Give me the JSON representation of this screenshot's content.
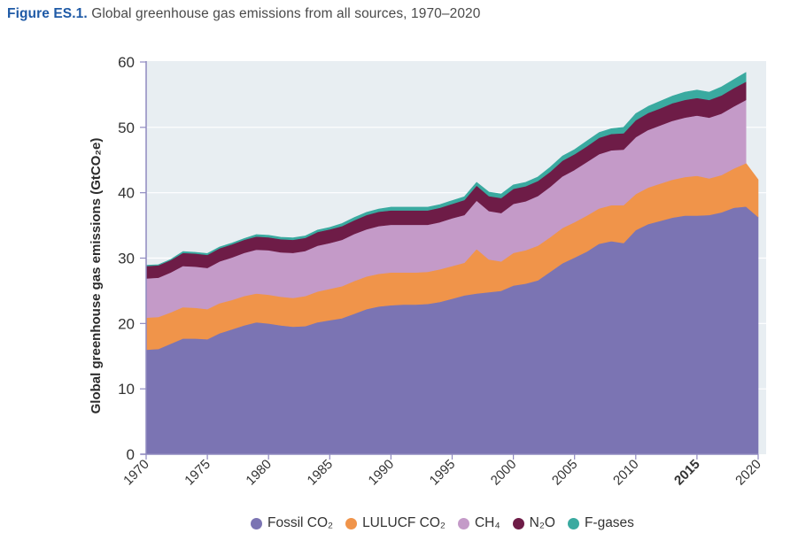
{
  "figure": {
    "label": "Figure ES.1.",
    "caption": " Global greenhouse gas emissions from all sources, 1970–2020"
  },
  "chart_data": {
    "type": "area",
    "stacked": true,
    "title": "Global greenhouse gas emissions from all sources, 1970–2020",
    "xlabel": "",
    "ylabel": "Global greenhouse gas emissions (GtCO₂e)",
    "ylim": [
      0,
      60
    ],
    "xlim": [
      1970,
      2020
    ],
    "yticks": [
      0,
      10,
      20,
      30,
      40,
      50,
      60
    ],
    "xticks": [
      {
        "label": "1970",
        "value": 1970,
        "style": "normal"
      },
      {
        "label": "1975",
        "value": 1975,
        "style": "normal"
      },
      {
        "label": "1980",
        "value": 1980,
        "style": "normal"
      },
      {
        "label": "1985",
        "value": 1985,
        "style": "normal"
      },
      {
        "label": "1990",
        "value": 1990,
        "style": "normal"
      },
      {
        "label": "1995",
        "value": 1995,
        "style": "normal"
      },
      {
        "label": "2000",
        "value": 2000,
        "style": "normal"
      },
      {
        "label": "2005",
        "value": 2005,
        "style": "normal"
      },
      {
        "label": "2010",
        "value": 2010,
        "style": "normal"
      },
      {
        "label": "2015",
        "value": 2015,
        "style": "bold"
      },
      {
        "label": "2020",
        "value": 2020,
        "style": "highlight"
      }
    ],
    "grid": true,
    "legend_position": "bottom-center",
    "x": [
      1970,
      1971,
      1972,
      1973,
      1974,
      1975,
      1976,
      1977,
      1978,
      1979,
      1980,
      1981,
      1982,
      1983,
      1984,
      1985,
      1986,
      1987,
      1988,
      1989,
      1990,
      1991,
      1992,
      1993,
      1994,
      1995,
      1996,
      1997,
      1998,
      1999,
      2000,
      2001,
      2002,
      2003,
      2004,
      2005,
      2006,
      2007,
      2008,
      2009,
      2010,
      2011,
      2012,
      2013,
      2014,
      2015,
      2016,
      2017,
      2018,
      2019,
      2020
    ],
    "series": [
      {
        "name": "Fossil CO₂",
        "color": "#7b74b3",
        "values": [
          16.0,
          16.1,
          16.9,
          17.7,
          17.7,
          17.6,
          18.5,
          19.1,
          19.7,
          20.2,
          20.0,
          19.7,
          19.5,
          19.6,
          20.2,
          20.5,
          20.8,
          21.5,
          22.2,
          22.6,
          22.8,
          22.9,
          22.9,
          23.0,
          23.3,
          23.8,
          24.3,
          24.6,
          24.8,
          25.0,
          25.8,
          26.1,
          26.6,
          27.9,
          29.2,
          30.1,
          31.0,
          32.2,
          32.6,
          32.3,
          34.3,
          35.2,
          35.7,
          36.2,
          36.5,
          36.5,
          36.6,
          37.0,
          37.7,
          37.9,
          36.3
        ]
      },
      {
        "name": "LULUCF CO₂",
        "color": "#f0944a",
        "values": [
          4.9,
          4.9,
          4.8,
          4.8,
          4.7,
          4.6,
          4.6,
          4.5,
          4.5,
          4.4,
          4.4,
          4.4,
          4.4,
          4.6,
          4.7,
          4.8,
          4.9,
          5.0,
          5.0,
          5.0,
          5.0,
          4.9,
          4.9,
          4.9,
          5.0,
          5.0,
          5.0,
          6.8,
          5.0,
          4.5,
          5.0,
          5.1,
          5.3,
          5.3,
          5.4,
          5.4,
          5.5,
          5.4,
          5.5,
          5.8,
          5.5,
          5.6,
          5.7,
          5.8,
          5.9,
          6.1,
          5.6,
          5.7,
          6.0,
          6.6,
          5.7
        ]
      },
      {
        "name": "CH₄",
        "color": "#c49ac8",
        "values": [
          6.0,
          6.0,
          6.1,
          6.3,
          6.3,
          6.3,
          6.4,
          6.5,
          6.6,
          6.7,
          6.8,
          6.8,
          6.9,
          6.9,
          7.0,
          7.0,
          7.1,
          7.2,
          7.2,
          7.3,
          7.3,
          7.3,
          7.3,
          7.2,
          7.2,
          7.3,
          7.3,
          7.4,
          7.4,
          7.4,
          7.5,
          7.5,
          7.6,
          7.7,
          7.9,
          8.0,
          8.2,
          8.3,
          8.4,
          8.5,
          8.7,
          8.8,
          8.9,
          9.0,
          9.1,
          9.2,
          9.3,
          9.4,
          9.5,
          9.7,
          null
        ]
      },
      {
        "name": "N₂O",
        "color": "#6e1c47",
        "values": [
          1.9,
          1.9,
          1.9,
          2.0,
          2.0,
          2.0,
          2.0,
          2.0,
          2.0,
          2.0,
          2.0,
          2.0,
          2.0,
          2.0,
          2.1,
          2.1,
          2.1,
          2.1,
          2.2,
          2.2,
          2.2,
          2.2,
          2.2,
          2.2,
          2.2,
          2.2,
          2.3,
          2.3,
          2.3,
          2.3,
          2.3,
          2.3,
          2.3,
          2.3,
          2.4,
          2.4,
          2.4,
          2.5,
          2.5,
          2.5,
          2.6,
          2.6,
          2.6,
          2.7,
          2.7,
          2.7,
          2.7,
          2.8,
          2.8,
          2.8,
          null
        ]
      },
      {
        "name": "F-gases",
        "color": "#3aaaa0",
        "values": [
          0.1,
          0.1,
          0.1,
          0.2,
          0.2,
          0.2,
          0.2,
          0.2,
          0.2,
          0.3,
          0.3,
          0.3,
          0.3,
          0.3,
          0.3,
          0.3,
          0.4,
          0.4,
          0.4,
          0.4,
          0.5,
          0.5,
          0.5,
          0.5,
          0.5,
          0.5,
          0.5,
          0.5,
          0.6,
          0.6,
          0.6,
          0.6,
          0.6,
          0.7,
          0.7,
          0.7,
          0.8,
          0.8,
          0.8,
          0.9,
          1.0,
          1.0,
          1.1,
          1.1,
          1.2,
          1.2,
          1.2,
          1.3,
          1.3,
          1.4,
          null
        ]
      }
    ]
  },
  "colors": {
    "plot_background": "#e8eef2",
    "gridline": "#ffffff",
    "axis": "#8f8ac0",
    "title_accent": "#1f5aa6",
    "highlight_tick": "#e8715a"
  }
}
